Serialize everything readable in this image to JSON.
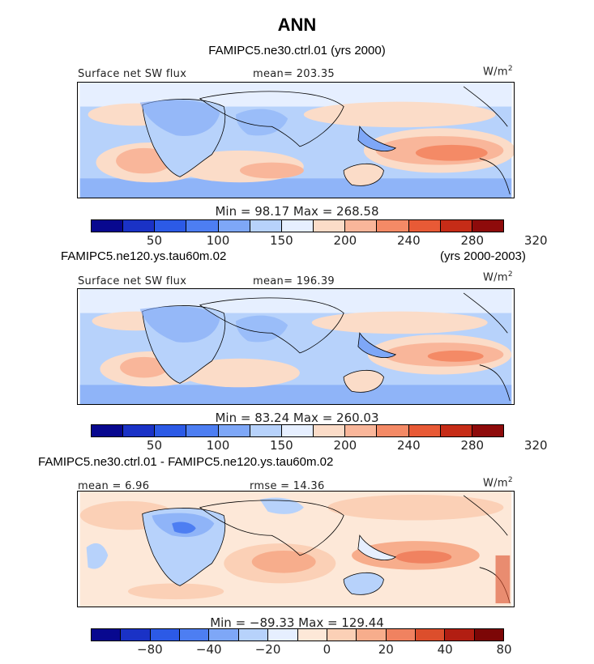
{
  "page_title": "ANN",
  "colors": {
    "base11": [
      "#08088f",
      "#1a32c6",
      "#2c5ae6",
      "#4d7ef2",
      "#7ea7f7",
      "#b7d2fb",
      "#e6efff",
      "#fbdcc8",
      "#f9b69a",
      "#f48a66",
      "#e85a36",
      "#c62c17",
      "#8e0b0b"
    ],
    "diff13": [
      "#08088f",
      "#1a32c6",
      "#2c5ae6",
      "#4d7ef2",
      "#7ea7f7",
      "#b7d2fb",
      "#e6efff",
      "#fde8d8",
      "#fbd0b6",
      "#f7ad8c",
      "#f08260",
      "#dc4e2c",
      "#b21e12",
      "#7c0606"
    ]
  },
  "panels": [
    {
      "id": "ctrl",
      "heading": "FAMIPC5.ne30.ctrl.01 (yrs 2000)",
      "left_label": "Surface net SW flux",
      "center_label": "mean= 203.35",
      "unit_base": "W/m",
      "unit_exp": "2",
      "minmax": "Min =  98.17 Max = 268.58",
      "ticks": [
        "50",
        "100",
        "150",
        "200",
        "240",
        "280",
        "320"
      ]
    },
    {
      "id": "test",
      "heading_left": "FAMIPC5.ne120.ys.tau60m.02",
      "heading_right": "(yrs 2000-2003)",
      "left_label": "Surface net SW flux",
      "center_label": "mean= 196.39",
      "unit_base": "W/m",
      "unit_exp": "2",
      "minmax": "Min =  83.24 Max = 260.03",
      "ticks": [
        "50",
        "100",
        "150",
        "200",
        "240",
        "280",
        "320"
      ]
    },
    {
      "id": "diff",
      "heading": "FAMIPC5.ne30.ctrl.01 - FAMIPC5.ne120.ys.tau60m.02",
      "left_label": "mean =   6.96",
      "center_label": "rmse =  14.36",
      "unit_base": "W/m",
      "unit_exp": "2",
      "minmax": "Min = −89.33 Max = 129.44",
      "ticks": [
        "−80",
        "−40",
        "−20",
        "0",
        "20",
        "40",
        "80"
      ]
    }
  ],
  "chart_data": [
    {
      "type": "heatmap",
      "title": "FAMIPC5.ne30.ctrl.01 (yrs 2000)",
      "variable": "Surface net SW flux",
      "units": "W/m2",
      "mean": 203.35,
      "min": 98.17,
      "max": 268.58,
      "colorbar_levels": [
        25,
        50,
        75,
        100,
        125,
        150,
        175,
        200,
        220,
        240,
        260,
        280,
        300,
        320
      ],
      "colorbar_tick_labels": [
        50,
        100,
        150,
        200,
        240,
        280,
        320
      ]
    },
    {
      "type": "heatmap",
      "title": "FAMIPC5.ne120.ys.tau60m.02 (yrs 2000-2003)",
      "variable": "Surface net SW flux",
      "units": "W/m2",
      "mean": 196.39,
      "min": 83.24,
      "max": 260.03,
      "colorbar_levels": [
        25,
        50,
        75,
        100,
        125,
        150,
        175,
        200,
        220,
        240,
        260,
        280,
        300,
        320
      ],
      "colorbar_tick_labels": [
        50,
        100,
        150,
        200,
        240,
        280,
        320
      ]
    },
    {
      "type": "heatmap",
      "title": "FAMIPC5.ne30.ctrl.01 - FAMIPC5.ne120.ys.tau60m.02",
      "units": "W/m2",
      "mean": 6.96,
      "rmse": 14.36,
      "min": -89.33,
      "max": 129.44,
      "colorbar_tick_labels": [
        -80,
        -40,
        -20,
        0,
        20,
        40,
        80
      ]
    }
  ]
}
